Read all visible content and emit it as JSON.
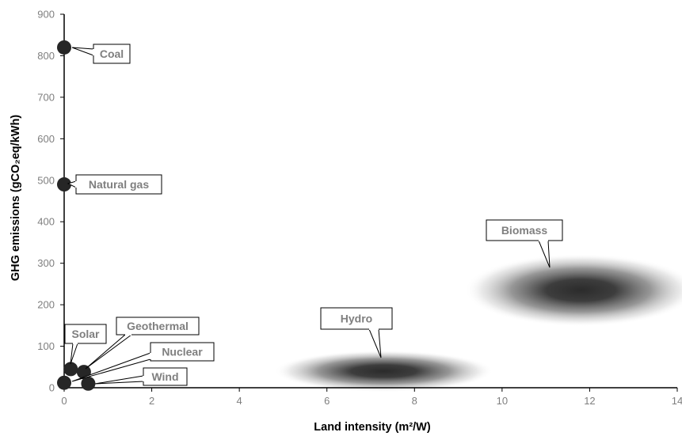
{
  "chart_data": {
    "type": "scatter",
    "title": "",
    "xlabel": "Land intensity (m²/W)",
    "ylabel": "GHG emissions (gCO₂eq/kWh)",
    "xlim": [
      0,
      14
    ],
    "ylim": [
      0,
      900
    ],
    "x_ticks": [
      "0",
      "2",
      "4",
      "6",
      "8",
      "10",
      "12",
      "14"
    ],
    "y_ticks": [
      "0",
      "100",
      "200",
      "300",
      "400",
      "500",
      "600",
      "700",
      "800",
      "900"
    ],
    "grid": false,
    "legend": "none",
    "point_color": "#262626",
    "points": [
      {
        "label": "Coal",
        "x": 0.0,
        "y": 820
      },
      {
        "label": "Natural gas",
        "x": 0.0,
        "y": 490
      },
      {
        "label": "Solar",
        "x": 0.15,
        "y": 45
      },
      {
        "label": "Geothermal",
        "x": 0.45,
        "y": 38
      },
      {
        "label": "Nuclear",
        "x": 0.0,
        "y": 12
      },
      {
        "label": "Wind",
        "x": 0.55,
        "y": 10
      }
    ],
    "regions": [
      {
        "label": "Hydro",
        "x_center": 7.3,
        "y_center": 40,
        "x_range": [
          5.0,
          10.0
        ],
        "y_range": [
          0,
          100
        ]
      },
      {
        "label": "Biomass",
        "x_center": 11.8,
        "y_center": 235,
        "x_range": [
          9.2,
          14.5
        ],
        "y_range": [
          150,
          325
        ]
      }
    ]
  }
}
